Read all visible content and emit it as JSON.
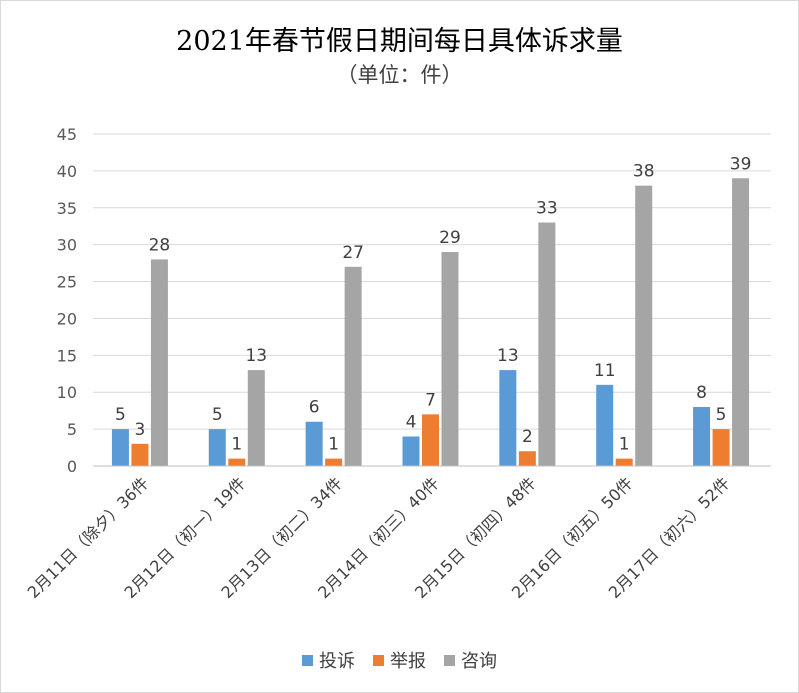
{
  "chart_data": {
    "type": "bar",
    "title": "2021年春节假日期间每日具体诉求量",
    "subtitle": "（单位：件）",
    "categories": [
      "2月11日（除夕）36件",
      "2月12日（初一）19件",
      "2月13日（初二）34件",
      "2月14日（初三）40件",
      "2月15日（初四）48件",
      "2月16日（初五）50件",
      "2月17日（初六）52件"
    ],
    "series": [
      {
        "name": "投诉",
        "color": "#5b9bd5",
        "values": [
          5,
          5,
          6,
          4,
          13,
          11,
          8
        ]
      },
      {
        "name": "举报",
        "color": "#ed7d31",
        "values": [
          3,
          1,
          1,
          7,
          2,
          1,
          5
        ]
      },
      {
        "name": "咨询",
        "color": "#a5a5a5",
        "values": [
          28,
          13,
          27,
          29,
          33,
          38,
          39
        ]
      }
    ],
    "ylim": [
      0,
      45
    ],
    "yticks": [
      0,
      5,
      10,
      15,
      20,
      25,
      30,
      35,
      40,
      45
    ],
    "grid": true,
    "legend": "bottom",
    "data_labels": true
  }
}
